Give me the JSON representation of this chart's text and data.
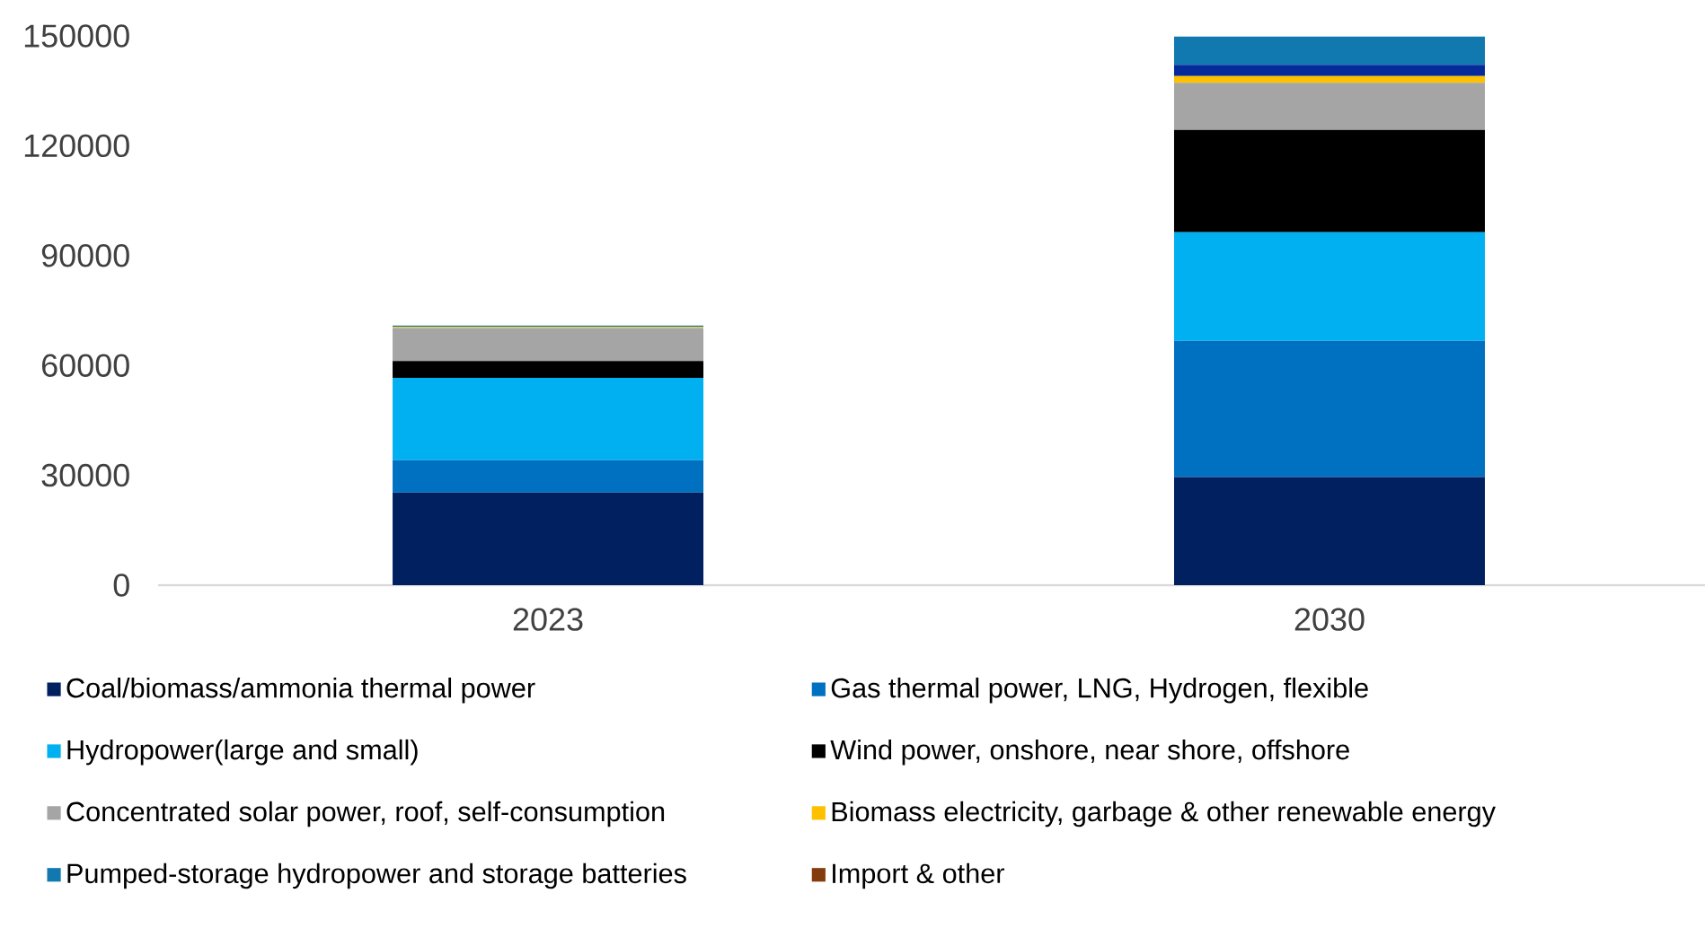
{
  "chart_data": {
    "type": "bar",
    "stacked": true,
    "categories": [
      "2023",
      "2030"
    ],
    "ylim": [
      0,
      150000
    ],
    "yticks": [
      0,
      30000,
      60000,
      90000,
      120000,
      150000
    ],
    "legend": "bottom",
    "series": [
      {
        "name": "Coal/biomass/ammonia thermal power",
        "color": "#002060",
        "values": [
          25300,
          29500
        ]
      },
      {
        "name": "Gas thermal power, LNG, Hydrogen, flexible",
        "color": "#0070c0",
        "values": [
          8800,
          37200
        ]
      },
      {
        "name": "Hydropower(large and small)",
        "color": "#00b0f0",
        "values": [
          22500,
          29700
        ]
      },
      {
        "name": "Wind power, onshore, near shore, offshore",
        "color": "#000000",
        "values": [
          4600,
          27900
        ]
      },
      {
        "name": "Concentrated solar power, roof, self-consumption",
        "color": "#a5a5a5",
        "values": [
          9000,
          12900
        ]
      },
      {
        "name": "Biomass electricity, garbage & other renewable energy",
        "color": "#ffc000",
        "values": [
          300,
          1800
        ]
      },
      {
        "color": "#052a9a",
        "values": [
          0,
          3100
        ]
      },
      {
        "name": "Pumped-storage hydropower and storage batteries",
        "color": "#1278b0",
        "values": [
          400,
          7700
        ]
      },
      {
        "name": "Import & other",
        "color": "#843c0c",
        "values": [
          0,
          0
        ]
      }
    ]
  }
}
